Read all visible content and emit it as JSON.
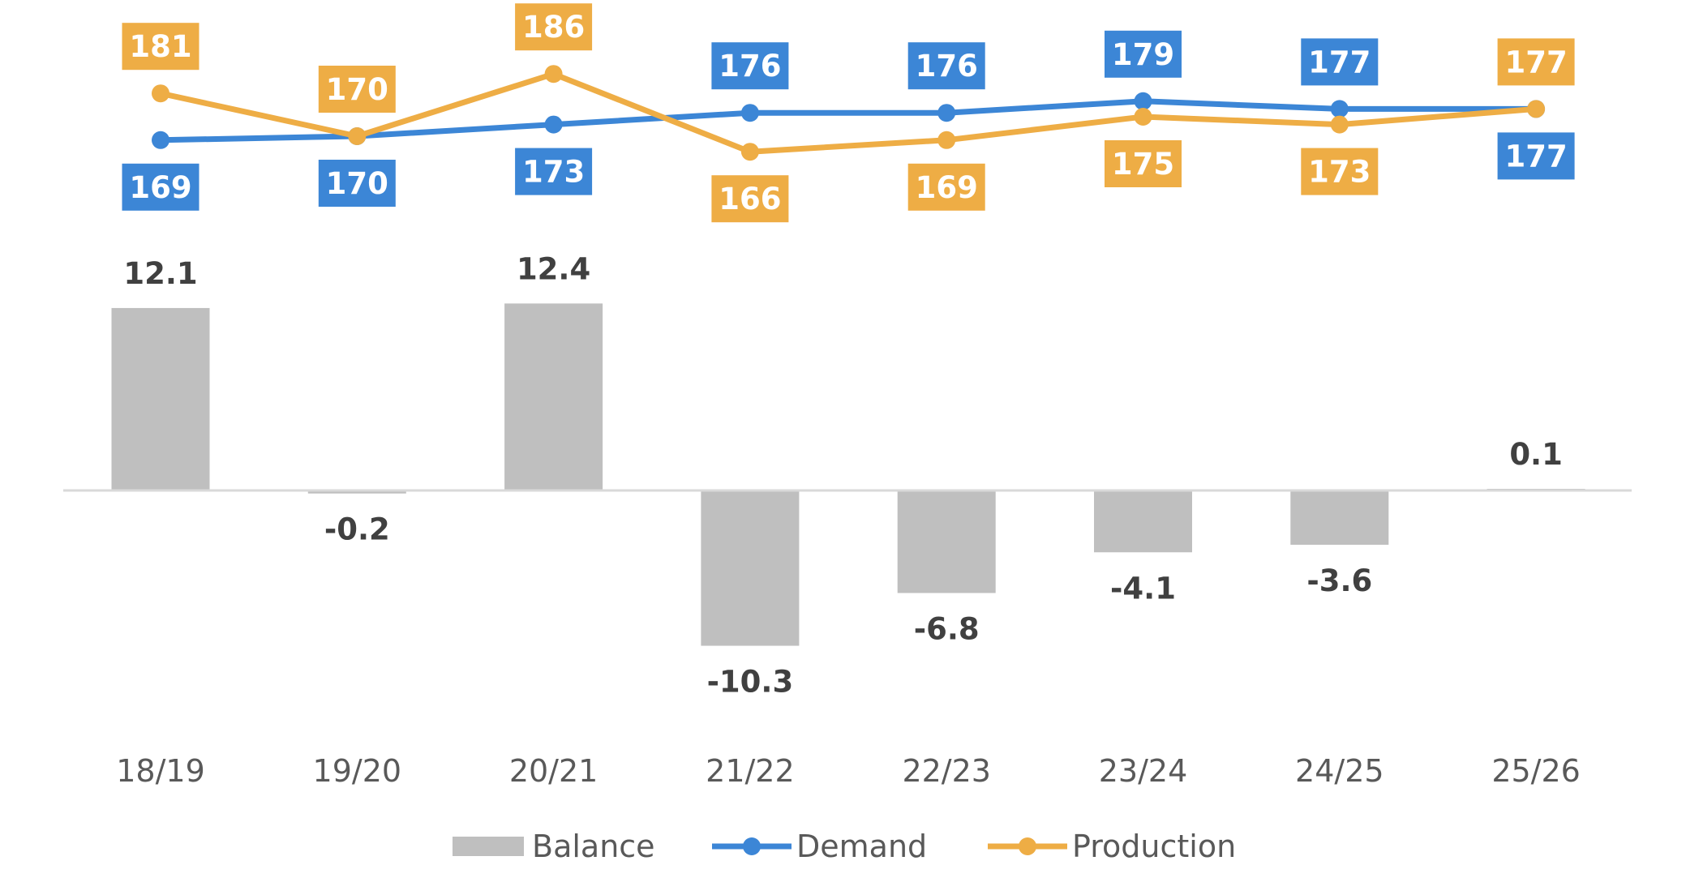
{
  "chart_data": {
    "type": "bar",
    "categories": [
      "18/19",
      "19/20",
      "20/21",
      "21/22",
      "22/23",
      "23/24",
      "24/25",
      "25/26"
    ],
    "series": [
      {
        "name": "Balance",
        "type": "bar",
        "color": "#BFBFBF",
        "values": [
          12.1,
          -0.2,
          12.4,
          -10.3,
          -6.8,
          -4.1,
          -3.6,
          0.1
        ],
        "labels": [
          "12.1",
          "-0.2",
          "12.4",
          "-10.3",
          "-6.8",
          "-4.1",
          "-3.6",
          "0.1"
        ]
      },
      {
        "name": "Demand",
        "type": "line",
        "color": "#3C86D6",
        "values": [
          169,
          170,
          173,
          176,
          176,
          179,
          177,
          177
        ],
        "labels": [
          "169",
          "170",
          "173",
          "176",
          "176",
          "179",
          "177",
          "177"
        ]
      },
      {
        "name": "Production",
        "type": "line",
        "color": "#EEAD45",
        "values": [
          181,
          170,
          186,
          166,
          169,
          175,
          173,
          177
        ],
        "labels": [
          "181",
          "170",
          "186",
          "166",
          "169",
          "175",
          "173",
          "177"
        ]
      }
    ],
    "title": "",
    "xlabel": "",
    "ylabel": "",
    "balance_axis_range": [
      -15,
      15
    ],
    "grid": false,
    "legend_position": "bottom",
    "legend": [
      "Balance",
      "Demand",
      "Production"
    ]
  }
}
